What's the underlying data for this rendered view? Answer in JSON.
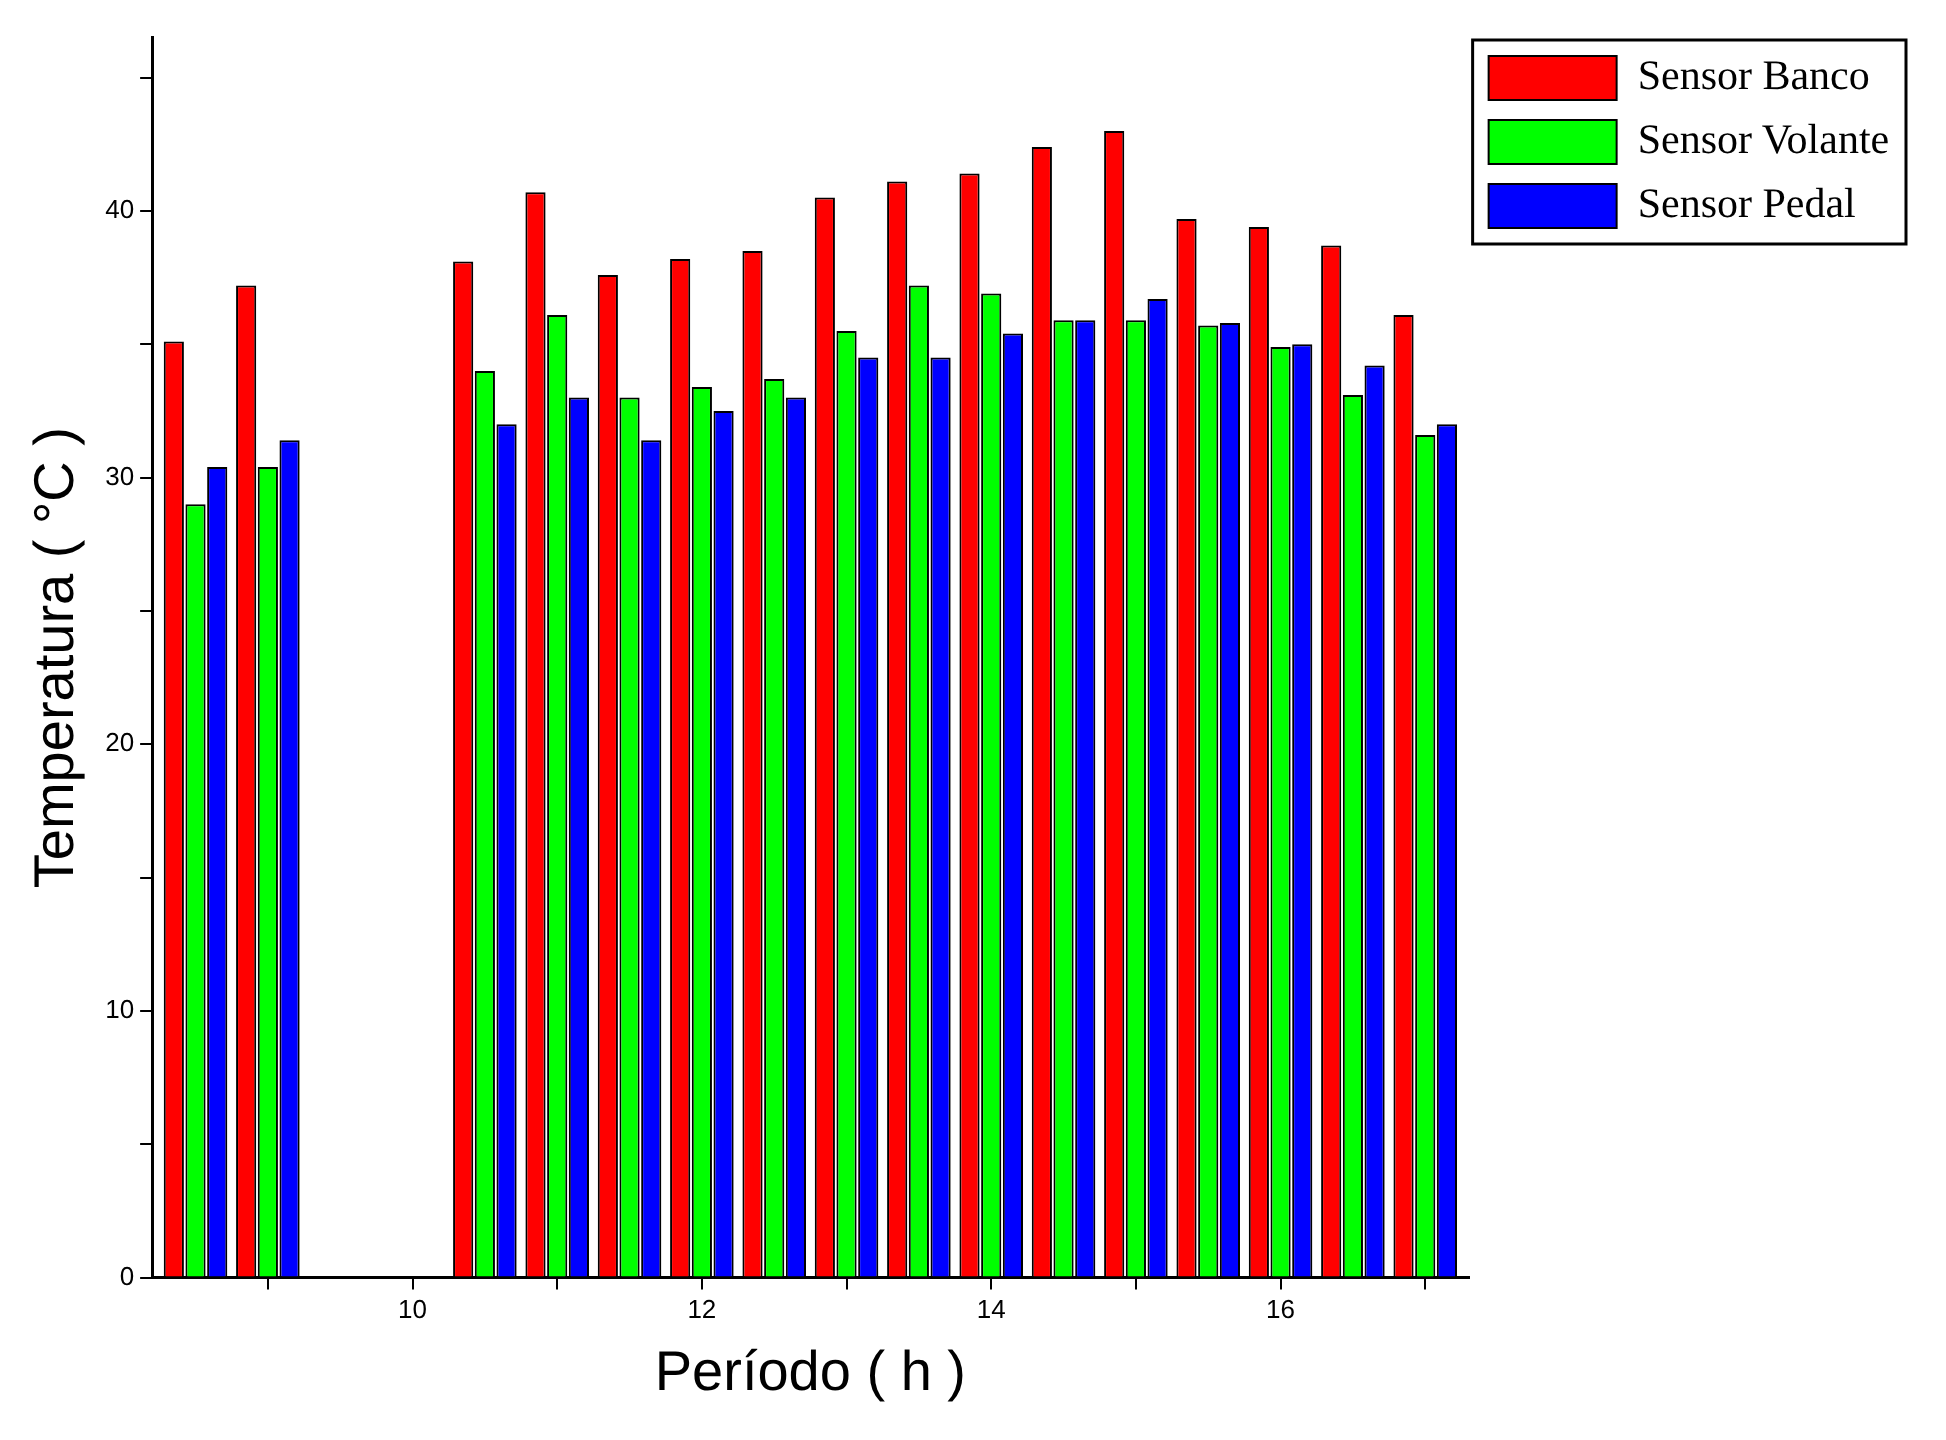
{
  "chart_data": {
    "type": "bar",
    "xlabel": "Período ( h )",
    "ylabel": "Temperatura ( °C )",
    "x": [
      8.5,
      9,
      10.5,
      11,
      11.5,
      12,
      12.5,
      13,
      13.5,
      14,
      14.5,
      15,
      15.5,
      16,
      16.5,
      17
    ],
    "series": [
      {
        "name": "Sensor Banco",
        "color": "#ff0000",
        "values": [
          35.1,
          37.2,
          38.1,
          40.7,
          37.6,
          38.2,
          38.5,
          40.5,
          41.1,
          41.4,
          42.4,
          43.0,
          39.7,
          39.4,
          38.7,
          36.1
        ]
      },
      {
        "name": "Sensor Volante",
        "color": "#00ff00",
        "values": [
          29.0,
          30.4,
          34.0,
          36.1,
          33.0,
          33.4,
          33.7,
          35.5,
          37.2,
          36.9,
          35.9,
          35.9,
          35.7,
          34.9,
          33.1,
          31.6
        ]
      },
      {
        "name": "Sensor Pedal",
        "color": "#0000ff",
        "values": [
          30.4,
          31.4,
          32.0,
          33.0,
          31.4,
          32.5,
          33.0,
          34.5,
          34.5,
          35.4,
          35.9,
          36.7,
          35.8,
          35.0,
          34.2,
          32.0
        ]
      }
    ],
    "xlim": [
      8.2,
      17.3
    ],
    "xticks": [
      {
        "value": 9,
        "label": null
      },
      10,
      {
        "value": 11,
        "label": null
      },
      12,
      {
        "value": 13,
        "label": null
      },
      14,
      {
        "value": 15,
        "label": null
      },
      16,
      {
        "value": 17,
        "label": null
      }
    ],
    "ylim": [
      0,
      46.5
    ],
    "yticks": [
      0,
      {
        "value": 5,
        "label": null
      },
      10,
      {
        "value": 15,
        "label": null
      },
      20,
      {
        "value": 25,
        "label": null
      },
      30,
      {
        "value": 35,
        "label": null
      },
      40,
      {
        "value": 45,
        "label": null
      }
    ],
    "grid": false,
    "legend": "top right"
  }
}
